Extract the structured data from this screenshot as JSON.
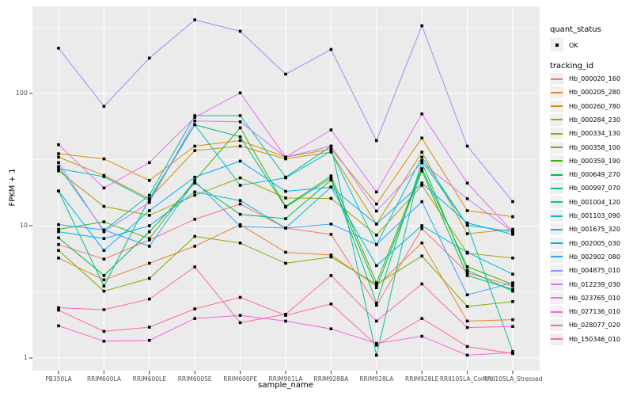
{
  "legend": {
    "quant_status_title": "quant_status",
    "quant_status_items": [
      "OK"
    ],
    "quant_status_symbol": "black-square-point",
    "tracking_id_title": "tracking_id"
  },
  "colors": {
    "panel_bg": "#EBEBEB",
    "grid": "#FFFFFF",
    "tick_mark": "#333333",
    "axis_text": "#4D4D4D",
    "point": "#000000",
    "legend_key_bg": "#F0F0F0"
  },
  "chart_data": {
    "type": "line",
    "title": "",
    "xlabel": "sample_name",
    "ylabel": "FPKM + 1",
    "y_scale": "log10",
    "ylim": [
      0.8,
      470
    ],
    "y_ticks": [
      1,
      10,
      100
    ],
    "y_tick_labels": [
      "1",
      "10",
      "100"
    ],
    "y_minor_ticks": [
      3.162,
      31.62,
      316.2
    ],
    "grid": true,
    "legend_position": "right",
    "point_marker": "black-square",
    "categories": [
      "PB350LA",
      "RRIM600LA",
      "RRIM600LE",
      "RRIM600SE",
      "RRIM600PE",
      "RRIM901LA",
      "RRIM928BA",
      "RRIM928LA",
      "RRIM928LE",
      "RRII105LA_Control",
      "RRII105LA_Stressed"
    ],
    "series": [
      {
        "name": "Hb_000020_160",
        "color": "#F8766D",
        "values": [
          7.2,
          5.6,
          7.8,
          11.2,
          14.6,
          9.6,
          8.6,
          2.5,
          9.5,
          4.4,
          3.5
        ]
      },
      {
        "name": "Hb_000205_280",
        "color": "#EA8331",
        "values": [
          5.7,
          3.9,
          5.2,
          7.0,
          10.2,
          6.3,
          6.0,
          3.5,
          7.4,
          1.9,
          1.95
        ]
      },
      {
        "name": "Hb_000260_780",
        "color": "#D89000",
        "values": [
          35,
          32,
          22,
          40,
          44,
          33,
          38,
          14.6,
          46,
          13,
          11.7
        ]
      },
      {
        "name": "Hb_000284_230",
        "color": "#C09B00",
        "values": [
          33,
          24,
          16,
          37,
          40,
          32,
          36,
          10.3,
          36,
          8.7,
          9.4
        ]
      },
      {
        "name": "Hb_000334_130",
        "color": "#A3A500",
        "values": [
          26,
          14,
          12,
          17,
          23,
          16.2,
          16.1,
          8.5,
          20.2,
          6.2,
          5.7
        ]
      },
      {
        "name": "Hb_000358_100",
        "color": "#7CAE00",
        "values": [
          6.5,
          3.2,
          4.0,
          8.3,
          7.4,
          5.2,
          5.8,
          3.6,
          5.9,
          2.45,
          2.67
        ]
      },
      {
        "name": "Hb_000359_190",
        "color": "#39B600",
        "values": [
          9.4,
          10.7,
          8.0,
          22,
          55,
          14,
          23.8,
          3.7,
          27,
          4.9,
          3.6
        ]
      },
      {
        "name": "Hb_000649_270",
        "color": "#00BB4E",
        "values": [
          8.1,
          4.2,
          9.0,
          21,
          12.2,
          11.3,
          22.2,
          3.4,
          26,
          4.2,
          3.3
        ]
      },
      {
        "name": "Hb_000997_070",
        "color": "#00BF7D",
        "values": [
          18.3,
          3.5,
          16,
          58,
          47,
          13.8,
          23,
          2.6,
          30,
          4.6,
          3.2
        ]
      },
      {
        "name": "Hb_001004_120",
        "color": "#00C1A3",
        "values": [
          28,
          9.2,
          17,
          68,
          68,
          23.3,
          40,
          1.05,
          31,
          10.1,
          1.12
        ]
      },
      {
        "name": "Hb_001103_090",
        "color": "#00BFC4",
        "values": [
          27,
          23.5,
          15.5,
          58,
          20.2,
          23,
          36.6,
          7.2,
          33,
          10.1,
          9.0
        ]
      },
      {
        "name": "Hb_001675_320",
        "color": "#00BAE0",
        "values": [
          9.0,
          8.0,
          10,
          18,
          15.5,
          9.6,
          19.6,
          5.0,
          10,
          6.3,
          4.3
        ]
      },
      {
        "name": "Hb_002005_030",
        "color": "#00B0F6",
        "values": [
          18.3,
          6.5,
          13,
          23.3,
          30.8,
          18.2,
          19.6,
          10.3,
          21,
          10.5,
          8.6
        ]
      },
      {
        "name": "Hb_002902_080",
        "color": "#35A2FF",
        "values": [
          10.2,
          9.3,
          7.0,
          21.7,
          9.9,
          9.6,
          10.3,
          7.2,
          15.2,
          3.0,
          3.7
        ]
      },
      {
        "name": "Hb_004875_010",
        "color": "#9590FF",
        "values": [
          220,
          80,
          185,
          360,
          295,
          140,
          215,
          44,
          325,
          40,
          15.2
        ]
      },
      {
        "name": "Hb_012239_030",
        "color": "#C77CFF",
        "values": [
          30,
          9.0,
          15,
          62,
          61,
          33,
          40,
          12.9,
          30,
          16,
          9.0
        ]
      },
      {
        "name": "Hb_023765_010",
        "color": "#E76BF3",
        "values": [
          41,
          19.3,
          30,
          66,
          101,
          33,
          53,
          18,
          70,
          21,
          9.0
        ]
      },
      {
        "name": "Hb_027136_010",
        "color": "#FA62DB",
        "values": [
          1.75,
          1.34,
          1.36,
          1.99,
          2.1,
          1.9,
          1.66,
          1.29,
          1.46,
          1.05,
          1.1
        ]
      },
      {
        "name": "Hb_028077_020",
        "color": "#FF62BC",
        "values": [
          2.4,
          2.32,
          2.79,
          4.88,
          1.85,
          2.14,
          4.2,
          1.9,
          3.63,
          1.7,
          1.73
        ]
      },
      {
        "name": "Hb_150346_010",
        "color": "#FF6A98",
        "values": [
          2.3,
          1.59,
          1.71,
          2.35,
          2.87,
          2.1,
          2.56,
          1.25,
          1.99,
          1.22,
          1.08
        ]
      }
    ]
  }
}
